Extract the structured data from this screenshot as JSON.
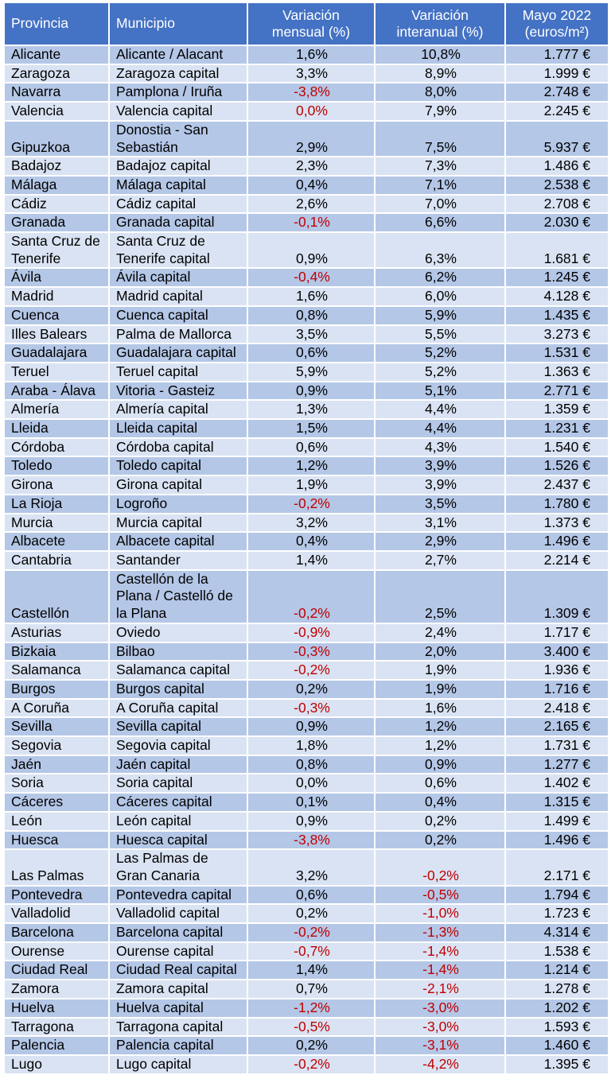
{
  "headers": {
    "provincia": "Provincia",
    "municipio": "Municipio",
    "mensual_line1": "Variación",
    "mensual_line2": "mensual (%)",
    "interanual_line1": "Variación",
    "interanual_line2": "interanual (%)",
    "precio_line1": "Mayo 2022",
    "precio_line2": "(euros/m²)"
  },
  "rows": [
    {
      "provincia": "Alicante",
      "municipio": "Alicante / Alacant",
      "mensual": "1,6%",
      "interanual": "10,8%",
      "precio": "1.777 €"
    },
    {
      "provincia": "Zaragoza",
      "municipio": "Zaragoza capital",
      "mensual": "3,3%",
      "interanual": "8,9%",
      "precio": "1.999 €"
    },
    {
      "provincia": "Navarra",
      "municipio": "Pamplona / Iruña",
      "mensual": "-3,8%",
      "interanual": "8,0%",
      "precio": "2.748 €"
    },
    {
      "provincia": "Valencia",
      "municipio": "Valencia capital",
      "mensual": "0,0%",
      "interanual": "7,9%",
      "precio": "2.245 €"
    },
    {
      "provincia": "Gipuzkoa",
      "municipio": "Donostia - San Sebastián",
      "mensual": "2,9%",
      "interanual": "7,5%",
      "precio": "5.937 €"
    },
    {
      "provincia": "Badajoz",
      "municipio": "Badajoz capital",
      "mensual": "2,3%",
      "interanual": "7,3%",
      "precio": "1.486 €"
    },
    {
      "provincia": "Málaga",
      "municipio": "Málaga capital",
      "mensual": "0,4%",
      "interanual": "7,1%",
      "precio": "2.538 €"
    },
    {
      "provincia": "Cádiz",
      "municipio": "Cádiz capital",
      "mensual": "2,6%",
      "interanual": "7,0%",
      "precio": "2.708 €"
    },
    {
      "provincia": "Granada",
      "municipio": "Granada capital",
      "mensual": "-0,1%",
      "interanual": "6,6%",
      "precio": "2.030 €"
    },
    {
      "provincia": "Santa Cruz de Tenerife",
      "municipio": "Santa Cruz de Tenerife capital",
      "mensual": "0,9%",
      "interanual": "6,3%",
      "precio": "1.681 €"
    },
    {
      "provincia": "Ávila",
      "municipio": "Ávila capital",
      "mensual": "-0,4%",
      "interanual": "6,2%",
      "precio": "1.245 €"
    },
    {
      "provincia": "Madrid",
      "municipio": "Madrid capital",
      "mensual": "1,6%",
      "interanual": "6,0%",
      "precio": "4.128 €"
    },
    {
      "provincia": "Cuenca",
      "municipio": "Cuenca capital",
      "mensual": "0,8%",
      "interanual": "5,9%",
      "precio": "1.435 €"
    },
    {
      "provincia": "Illes Balears",
      "municipio": "Palma de Mallorca",
      "mensual": "3,5%",
      "interanual": "5,5%",
      "precio": "3.273 €"
    },
    {
      "provincia": "Guadalajara",
      "municipio": "Guadalajara capital",
      "mensual": "0,6%",
      "interanual": "5,2%",
      "precio": "1.531 €"
    },
    {
      "provincia": "Teruel",
      "municipio": "Teruel capital",
      "mensual": "5,9%",
      "interanual": "5,2%",
      "precio": "1.363 €"
    },
    {
      "provincia": "Araba - Álava",
      "municipio": "Vitoria - Gasteiz",
      "mensual": "0,9%",
      "interanual": "5,1%",
      "precio": "2.771 €"
    },
    {
      "provincia": "Almería",
      "municipio": "Almería capital",
      "mensual": "1,3%",
      "interanual": "4,4%",
      "precio": "1.359 €"
    },
    {
      "provincia": "Lleida",
      "municipio": "Lleida capital",
      "mensual": "1,5%",
      "interanual": "4,4%",
      "precio": "1.231 €"
    },
    {
      "provincia": "Córdoba",
      "municipio": "Córdoba capital",
      "mensual": "0,6%",
      "interanual": "4,3%",
      "precio": "1.540 €"
    },
    {
      "provincia": "Toledo",
      "municipio": "Toledo capital",
      "mensual": "1,2%",
      "interanual": "3,9%",
      "precio": "1.526 €"
    },
    {
      "provincia": "Girona",
      "municipio": "Girona capital",
      "mensual": "1,9%",
      "interanual": "3,9%",
      "precio": "2.437 €"
    },
    {
      "provincia": "La Rioja",
      "municipio": "Logroño",
      "mensual": "-0,2%",
      "interanual": "3,5%",
      "precio": "1.780 €"
    },
    {
      "provincia": "Murcia",
      "municipio": "Murcia capital",
      "mensual": "3,2%",
      "interanual": "3,1%",
      "precio": "1.373 €"
    },
    {
      "provincia": "Albacete",
      "municipio": "Albacete capital",
      "mensual": "0,4%",
      "interanual": "2,9%",
      "precio": "1.496 €"
    },
    {
      "provincia": "Cantabria",
      "municipio": "Santander",
      "mensual": "1,4%",
      "interanual": "2,7%",
      "precio": "2.214 €"
    },
    {
      "provincia": "Castellón",
      "municipio": "Castellón de la Plana / Castelló de la Plana",
      "mensual": "-0,2%",
      "interanual": "2,5%",
      "precio": "1.309 €"
    },
    {
      "provincia": "Asturias",
      "municipio": "Oviedo",
      "mensual": "-0,9%",
      "interanual": "2,4%",
      "precio": "1.717 €"
    },
    {
      "provincia": "Bizkaia",
      "municipio": "Bilbao",
      "mensual": "-0,3%",
      "interanual": "2,0%",
      "precio": "3.400 €"
    },
    {
      "provincia": "Salamanca",
      "municipio": "Salamanca capital",
      "mensual": "-0,2%",
      "interanual": "1,9%",
      "precio": "1.936 €"
    },
    {
      "provincia": "Burgos",
      "municipio": "Burgos capital",
      "mensual": "0,2%",
      "interanual": "1,9%",
      "precio": "1.716 €"
    },
    {
      "provincia": "A Coruña",
      "municipio": "A Coruña capital",
      "mensual": "-0,3%",
      "interanual": "1,6%",
      "precio": "2.418 €"
    },
    {
      "provincia": "Sevilla",
      "municipio": "Sevilla capital",
      "mensual": "0,9%",
      "interanual": "1,2%",
      "precio": "2.165 €"
    },
    {
      "provincia": "Segovia",
      "municipio": "Segovia capital",
      "mensual": "1,8%",
      "interanual": "1,2%",
      "precio": "1.731 €"
    },
    {
      "provincia": "Jaén",
      "municipio": "Jaén capital",
      "mensual": "0,8%",
      "interanual": "0,9%",
      "precio": "1.277 €"
    },
    {
      "provincia": "Soria",
      "municipio": "Soria capital",
      "mensual": "0,0%",
      "interanual": "0,6%",
      "precio": "1.402 €"
    },
    {
      "provincia": "Cáceres",
      "municipio": "Cáceres capital",
      "mensual": "0,1%",
      "interanual": "0,4%",
      "precio": "1.315 €"
    },
    {
      "provincia": "León",
      "municipio": "León capital",
      "mensual": "0,9%",
      "interanual": "0,2%",
      "precio": "1.499 €"
    },
    {
      "provincia": "Huesca",
      "municipio": "Huesca capital",
      "mensual": "-3,8%",
      "interanual": "0,2%",
      "precio": "1.496 €"
    },
    {
      "provincia": "Las Palmas",
      "municipio": "Las Palmas de Gran Canaria",
      "mensual": "3,2%",
      "interanual": "-0,2%",
      "precio": "2.171 €"
    },
    {
      "provincia": "Pontevedra",
      "municipio": "Pontevedra capital",
      "mensual": "0,6%",
      "interanual": "-0,5%",
      "precio": "1.794 €"
    },
    {
      "provincia": "Valladolid",
      "municipio": "Valladolid capital",
      "mensual": "0,2%",
      "interanual": "-1,0%",
      "precio": "1.723 €"
    },
    {
      "provincia": "Barcelona",
      "municipio": "Barcelona capital",
      "mensual": "-0,2%",
      "interanual": "-1,3%",
      "precio": "4.314 €"
    },
    {
      "provincia": "Ourense",
      "municipio": "Ourense capital",
      "mensual": "-0,7%",
      "interanual": "-1,4%",
      "precio": "1.538 €"
    },
    {
      "provincia": "Ciudad Real",
      "municipio": "Ciudad Real capital",
      "mensual": "1,4%",
      "interanual": "-1,4%",
      "precio": "1.214 €"
    },
    {
      "provincia": "Zamora",
      "municipio": "Zamora capital",
      "mensual": "0,7%",
      "interanual": "-2,1%",
      "precio": "1.278 €"
    },
    {
      "provincia": "Huelva",
      "municipio": "Huelva capital",
      "mensual": "-1,2%",
      "interanual": "-3,0%",
      "precio": "1.202 €"
    },
    {
      "provincia": "Tarragona",
      "municipio": "Tarragona capital",
      "mensual": "-0,5%",
      "interanual": "-3,0%",
      "precio": "1.593 €"
    },
    {
      "provincia": "Palencia",
      "municipio": "Palencia capital",
      "mensual": "0,2%",
      "interanual": "-3,1%",
      "precio": "1.460 €"
    },
    {
      "provincia": "Lugo",
      "municipio": "Lugo capital",
      "mensual": "-0,2%",
      "interanual": "-4,2%",
      "precio": "1.395 €"
    }
  ],
  "colors": {
    "header_bg": "#4472c4",
    "row_odd": "#b4c7e7",
    "row_even": "#dae3f3",
    "negative_text": "#c00000"
  }
}
